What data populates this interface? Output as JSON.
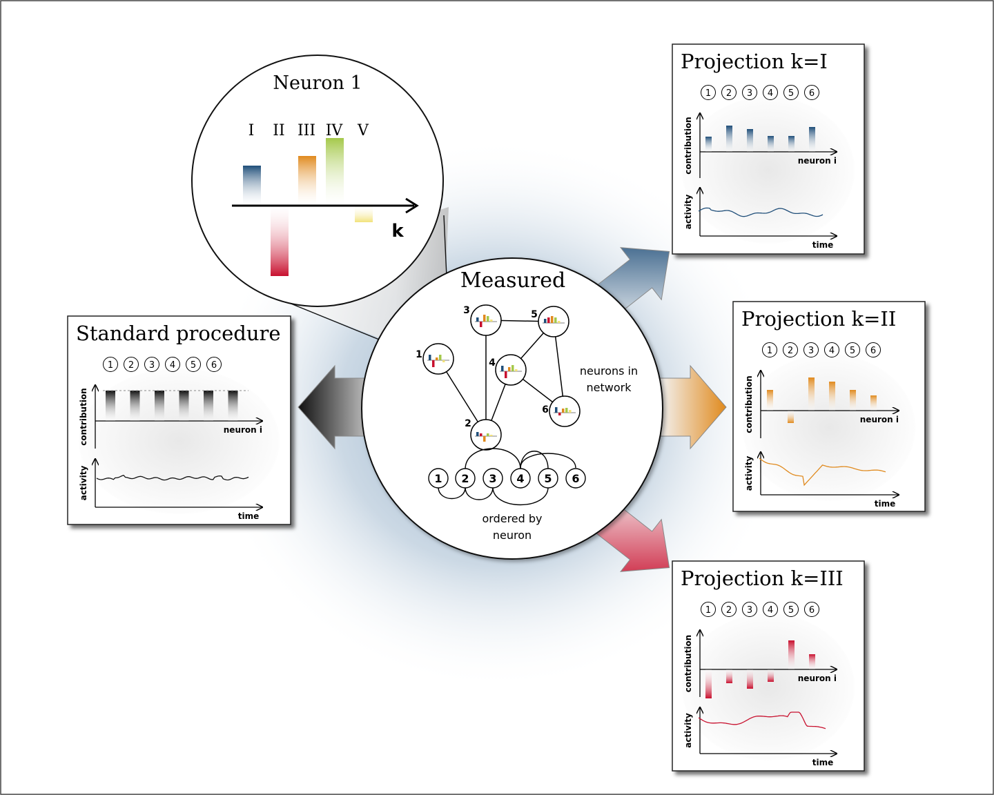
{
  "measured": {
    "title": "Measured",
    "network_label_line1": "neurons in",
    "network_label_line2": "network",
    "ordered_label_line1": "ordered by",
    "ordered_label_line2": "neuron",
    "node_numbers": [
      "1",
      "2",
      "3",
      "4",
      "5",
      "6"
    ],
    "order_numbers": [
      "1",
      "2",
      "3",
      "4",
      "5",
      "6"
    ]
  },
  "neuron_zoom": {
    "title": "Neuron 1",
    "axis_label": "k",
    "categories": [
      "I",
      "II",
      "III",
      "IV",
      "V"
    ]
  },
  "standard": {
    "title": "Standard procedure",
    "neuron_numbers": [
      "1",
      "2",
      "3",
      "4",
      "5",
      "6"
    ],
    "contribution_label": "contribution",
    "neuron_axis_label": "neuron i",
    "activity_label": "activity",
    "time_label": "time"
  },
  "projections": [
    {
      "title": "Projection k=I",
      "neuron_numbers": [
        "1",
        "2",
        "3",
        "4",
        "5",
        "6"
      ],
      "contribution_label": "contribution",
      "neuron_axis_label": "neuron i",
      "activity_label": "activity",
      "time_label": "time"
    },
    {
      "title": "Projection k=II",
      "neuron_numbers": [
        "1",
        "2",
        "3",
        "4",
        "5",
        "6"
      ],
      "contribution_label": "contribution",
      "neuron_axis_label": "neuron i",
      "activity_label": "activity",
      "time_label": "time"
    },
    {
      "title": "Projection k=III",
      "neuron_numbers": [
        "1",
        "2",
        "3",
        "4",
        "5",
        "6"
      ],
      "contribution_label": "contribution",
      "neuron_axis_label": "neuron i",
      "activity_label": "activity",
      "time_label": "time"
    }
  ],
  "colors": {
    "blue": "#1f4e79",
    "orange": "#e08a1e",
    "red": "#c8102e",
    "green": "#a4c84a",
    "yellow": "#f2e27a",
    "black": "#111111"
  }
}
